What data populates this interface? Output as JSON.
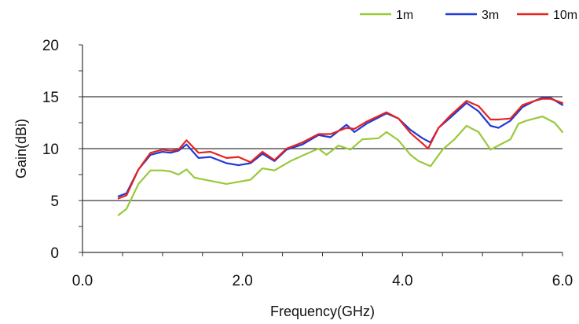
{
  "chart_data": {
    "type": "line",
    "xlabel": "Frequency(GHz)",
    "ylabel": "Gain(dBi)",
    "xlim": [
      0,
      6
    ],
    "ylim": [
      0,
      20
    ],
    "x_ticks": [
      "0.0",
      "2.0",
      "4.0",
      "6.0"
    ],
    "y_ticks": [
      "0",
      "5",
      "10",
      "15",
      "20"
    ],
    "grid": "horizontal at 5, 10, 15",
    "legend": "top-right",
    "series": [
      {
        "name": "1m",
        "color": "#99c93a",
        "x": [
          0.45,
          0.55,
          0.7,
          0.85,
          1.0,
          1.1,
          1.2,
          1.3,
          1.4,
          1.6,
          1.8,
          1.95,
          2.1,
          2.25,
          2.4,
          2.6,
          2.8,
          2.95,
          3.05,
          3.2,
          3.35,
          3.5,
          3.7,
          3.8,
          3.95,
          4.1,
          4.2,
          4.35,
          4.5,
          4.65,
          4.8,
          4.95,
          5.1,
          5.2,
          5.35,
          5.45,
          5.55,
          5.75,
          5.9,
          6.0
        ],
        "values": [
          3.6,
          4.2,
          6.6,
          7.9,
          7.9,
          7.8,
          7.5,
          8.0,
          7.2,
          6.9,
          6.6,
          6.8,
          7.0,
          8.1,
          7.9,
          8.8,
          9.5,
          10.0,
          9.4,
          10.3,
          9.9,
          10.9,
          11.0,
          11.6,
          10.8,
          9.4,
          8.8,
          8.3,
          9.9,
          10.9,
          12.2,
          11.6,
          9.9,
          10.3,
          10.9,
          12.4,
          12.7,
          13.1,
          12.5,
          11.6
        ]
      },
      {
        "name": "3m",
        "color": "#1f3bd6",
        "x": [
          0.45,
          0.55,
          0.7,
          0.85,
          1.0,
          1.1,
          1.2,
          1.3,
          1.45,
          1.6,
          1.8,
          1.95,
          2.1,
          2.25,
          2.4,
          2.55,
          2.75,
          2.95,
          3.1,
          3.3,
          3.4,
          3.55,
          3.8,
          3.95,
          4.1,
          4.25,
          4.35,
          4.45,
          4.6,
          4.8,
          4.95,
          5.1,
          5.2,
          5.35,
          5.5,
          5.65,
          5.75,
          5.85,
          6.0
        ],
        "values": [
          5.4,
          5.7,
          8.0,
          9.4,
          9.7,
          9.6,
          9.8,
          10.4,
          9.1,
          9.2,
          8.6,
          8.4,
          8.6,
          9.5,
          8.8,
          9.9,
          10.4,
          11.3,
          11.1,
          12.3,
          11.6,
          12.4,
          13.4,
          12.9,
          11.8,
          11.0,
          10.6,
          12.0,
          13.0,
          14.4,
          13.6,
          12.2,
          12.0,
          12.7,
          14.0,
          14.6,
          14.9,
          14.9,
          14.2
        ]
      },
      {
        "name": "10m",
        "color": "#e8221f",
        "x": [
          0.45,
          0.55,
          0.7,
          0.85,
          1.0,
          1.1,
          1.2,
          1.3,
          1.45,
          1.6,
          1.8,
          1.95,
          2.1,
          2.25,
          2.4,
          2.55,
          2.75,
          2.95,
          3.1,
          3.3,
          3.4,
          3.55,
          3.8,
          3.95,
          4.1,
          4.25,
          4.32,
          4.45,
          4.6,
          4.8,
          4.95,
          5.1,
          5.2,
          5.35,
          5.5,
          5.65,
          5.75,
          5.85,
          6.0
        ],
        "values": [
          5.2,
          5.5,
          8.0,
          9.6,
          9.9,
          9.8,
          9.9,
          10.8,
          9.6,
          9.7,
          9.1,
          9.2,
          8.7,
          9.7,
          8.9,
          10.0,
          10.6,
          11.4,
          11.4,
          12.0,
          11.9,
          12.6,
          13.5,
          12.9,
          11.5,
          10.5,
          10.0,
          12.0,
          13.2,
          14.6,
          14.1,
          12.8,
          12.8,
          12.9,
          14.2,
          14.6,
          14.8,
          14.8,
          14.4
        ]
      }
    ]
  }
}
